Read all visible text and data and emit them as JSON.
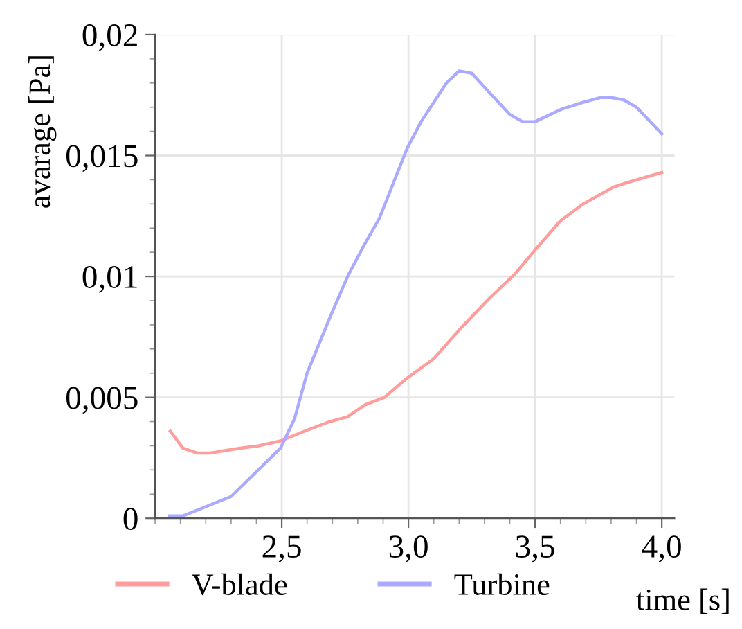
{
  "chart_data": {
    "type": "line",
    "xlabel": "time [s]",
    "ylabel": "avarage [Pa]",
    "xlim": [
      2.0,
      4.05
    ],
    "ylim": [
      0,
      0.02
    ],
    "xticks": [
      {
        "value": 2.5,
        "label": "2,5"
      },
      {
        "value": 3.0,
        "label": "3,0"
      },
      {
        "value": 3.5,
        "label": "3,5"
      },
      {
        "value": 4.0,
        "label": "4,0"
      }
    ],
    "yticks": [
      0,
      {
        "value": 0.005,
        "label": "0,005"
      },
      {
        "value": 0.01,
        "label": "0,01"
      },
      {
        "value": 0.015,
        "label": "0,015"
      },
      {
        "value": 0.02,
        "label": "0,02"
      }
    ],
    "grid": true,
    "legend": "bottom",
    "marker": "none",
    "line_style": "solid",
    "series": [
      {
        "name": "V-blade",
        "color": "#ff9c9c",
        "x": [
          2.06,
          2.11,
          2.165,
          2.22,
          2.275,
          2.335,
          2.41,
          2.495,
          2.59,
          2.69,
          2.76,
          2.83,
          2.905,
          2.995,
          3.1,
          3.21,
          3.32,
          3.42,
          3.5,
          3.6,
          3.69,
          3.81,
          3.87,
          4.0
        ],
        "values": [
          0.0036,
          0.0029,
          0.0027,
          0.0027,
          0.0028,
          0.0029,
          0.003,
          0.0032,
          0.0036,
          0.004,
          0.0042,
          0.0047,
          0.005,
          0.0058,
          0.0066,
          0.0079,
          0.0091,
          0.0101,
          0.0111,
          0.0123,
          0.013,
          0.0137,
          0.0139,
          0.0143
        ]
      },
      {
        "name": "Turbine",
        "color": "#aaaaff",
        "x": [
          2.055,
          2.11,
          2.3,
          2.495,
          2.55,
          2.6,
          2.69,
          2.76,
          2.82,
          2.885,
          2.995,
          3.05,
          3.15,
          3.2,
          3.25,
          3.32,
          3.4,
          3.45,
          3.5,
          3.6,
          3.69,
          3.76,
          3.8,
          3.85,
          3.9,
          4.0
        ],
        "values": [
          0.0001,
          0.0001,
          0.0009,
          0.0029,
          0.0041,
          0.006,
          0.0083,
          0.01,
          0.0112,
          0.0124,
          0.0153,
          0.0164,
          0.018,
          0.0185,
          0.0184,
          0.0176,
          0.0167,
          0.0164,
          0.0164,
          0.0169,
          0.0172,
          0.0174,
          0.0174,
          0.0173,
          0.017,
          0.0159
        ]
      }
    ]
  }
}
